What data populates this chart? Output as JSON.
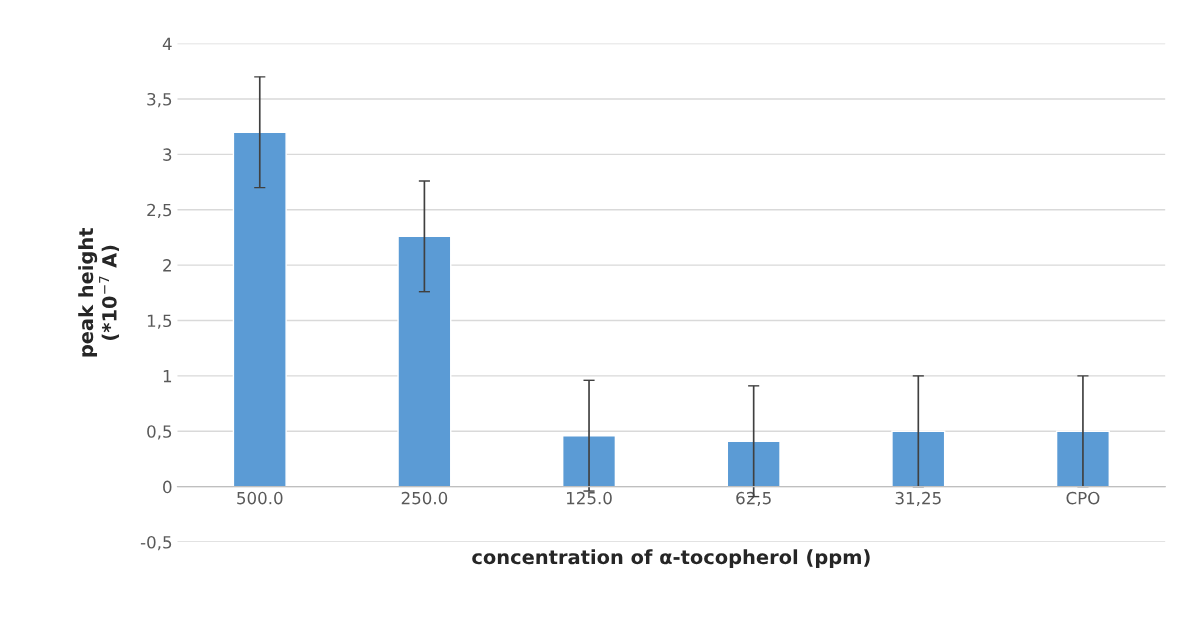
{
  "chart_data": {
    "type": "bar",
    "xlabel": "concentration of α-tocopherol (ppm)",
    "ylabel": "peak height\n(*10$^{−7}$ A)",
    "categories": [
      "500.0",
      "250.0",
      "125.0",
      "62,5",
      "31,25",
      "CPO"
    ],
    "values": [
      3.2,
      2.26,
      0.46,
      0.41,
      0.5,
      0.5
    ],
    "errors": [
      0.5,
      0.5,
      0.5,
      0.5,
      0.5,
      0.5
    ],
    "color": "#5b9bd5",
    "ylim": [
      -0.5,
      4
    ],
    "yticks": [
      {
        "value": -0.5,
        "label": "-0,5"
      },
      0,
      {
        "value": 0.5,
        "label": "0,5"
      },
      1,
      {
        "value": 1.5,
        "label": "1,5"
      },
      2,
      {
        "value": 2.5,
        "label": "2,5"
      },
      3,
      {
        "value": 3.5,
        "label": "3,5"
      },
      4
    ],
    "grid": "y",
    "legend": false
  }
}
